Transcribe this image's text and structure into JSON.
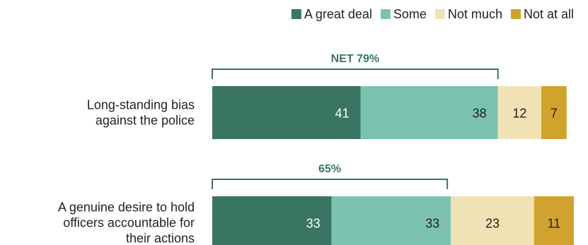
{
  "chart_data": {
    "type": "bar",
    "orientation": "horizontal",
    "stacked": true,
    "categories": [
      [
        "Long-standing bias",
        "against the police"
      ],
      [
        "A genuine desire to hold",
        "officers accountable for",
        "their actions"
      ]
    ],
    "series": [
      {
        "name": "A great deal",
        "values": [
          41,
          33
        ],
        "color": "#3a7563",
        "label_color": "#ffffff"
      },
      {
        "name": "Some",
        "values": [
          38,
          33
        ],
        "color": "#7bc3b0",
        "label_color": "#222222"
      },
      {
        "name": "Not much",
        "values": [
          12,
          23
        ],
        "color": "#f0e2b3",
        "label_color": "#222222"
      },
      {
        "name": "Not at all",
        "values": [
          7,
          11
        ],
        "color": "#d1a32c",
        "label_color": "#222222"
      }
    ],
    "net": {
      "labels": [
        "NET 79%",
        "65%"
      ],
      "values": [
        79,
        65
      ],
      "color": "#3a7563"
    },
    "xlim": [
      0,
      100
    ],
    "legend_position": "top-right",
    "grid": false
  }
}
